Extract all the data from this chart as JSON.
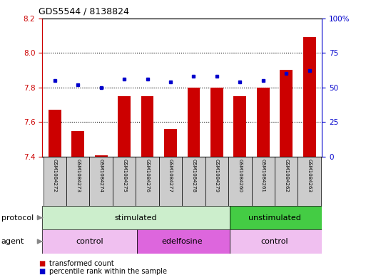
{
  "title": "GDS5544 / 8138824",
  "samples": [
    "GSM1084272",
    "GSM1084273",
    "GSM1084274",
    "GSM1084275",
    "GSM1084276",
    "GSM1084277",
    "GSM1084278",
    "GSM1084279",
    "GSM1084260",
    "GSM1084261",
    "GSM1084262",
    "GSM1084263"
  ],
  "bar_values": [
    7.67,
    7.55,
    7.41,
    7.75,
    7.75,
    7.56,
    7.8,
    7.8,
    7.75,
    7.8,
    7.9,
    8.09
  ],
  "dot_values": [
    55,
    52,
    50,
    56,
    56,
    54,
    58,
    58,
    54,
    55,
    60,
    62
  ],
  "ylim_left": [
    7.4,
    8.2
  ],
  "ylim_right": [
    0,
    100
  ],
  "yticks_left": [
    7.4,
    7.6,
    7.8,
    8.0,
    8.2
  ],
  "yticks_right": [
    0,
    25,
    50,
    75,
    100
  ],
  "bar_color": "#cc0000",
  "dot_color": "#0000cc",
  "bar_bottom": 7.4,
  "protocol_labels": [
    "stimulated",
    "unstimulated"
  ],
  "agent_labels": [
    "control",
    "edelfosine",
    "control"
  ],
  "stimulated_color_light": "#cceecc",
  "stimulated_color_dark": "#44cc44",
  "agent_control_color": "#f0c0f0",
  "agent_edelfosine_color": "#dd66dd",
  "label_bg_color": "#cccccc",
  "legend_red": "transformed count",
  "legend_blue": "percentile rank within the sample"
}
